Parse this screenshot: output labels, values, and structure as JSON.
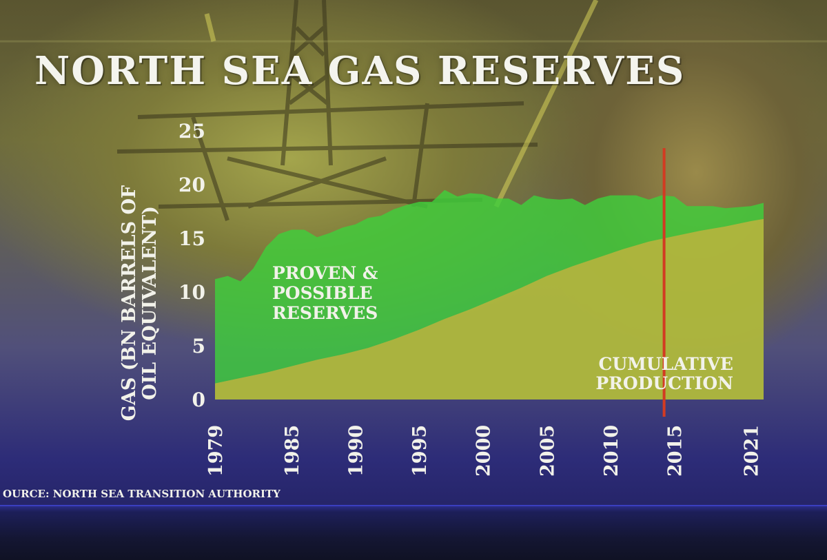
{
  "title": "NORTH SEA GAS RESERVES",
  "source": "OURCE: NORTH SEA TRANSITION AUTHORITY",
  "chart_data": {
    "type": "area",
    "title": "NORTH SEA GAS RESERVES",
    "ylabel": [
      "GAS (BN BARRELS OF",
      "OIL EQUIVALENT)"
    ],
    "xlabel": "",
    "ylim": [
      0,
      25
    ],
    "xlim": [
      1979,
      2022
    ],
    "y_ticks": [
      0,
      5,
      10,
      15,
      20,
      25
    ],
    "x_ticks": [
      "1979",
      "1985",
      "1990",
      "1995",
      "2000",
      "2005",
      "2010",
      "2015",
      "2021"
    ],
    "grid": false,
    "stacked": false,
    "series": [
      {
        "label": [
          "PROVEN &",
          "POSSIBLE",
          "RESERVES"
        ],
        "color": "#3fce3c",
        "x": [
          1979,
          1980,
          1981,
          1982,
          1983,
          1984,
          1985,
          1986,
          1987,
          1988,
          1989,
          1990,
          1991,
          1992,
          1993,
          1994,
          1995,
          1996,
          1997,
          1998,
          1999,
          2000,
          2001,
          2002,
          2003,
          2004,
          2005,
          2006,
          2007,
          2008,
          2009,
          2010,
          2011,
          2012,
          2013,
          2014,
          2015,
          2016,
          2017,
          2018,
          2019,
          2020,
          2021,
          2022
        ],
        "y": [
          11.2,
          11.5,
          11.0,
          12.2,
          14.2,
          15.4,
          15.8,
          15.8,
          15.1,
          15.5,
          16.0,
          16.3,
          16.9,
          17.1,
          17.7,
          18.1,
          18.4,
          18.4,
          19.5,
          18.9,
          19.2,
          19.1,
          18.7,
          18.7,
          18.1,
          19.0,
          18.7,
          18.6,
          18.7,
          18.1,
          18.7,
          19.0,
          19.0,
          19.0,
          18.6,
          19.0,
          18.9,
          18.0,
          18.0,
          18.0,
          17.8,
          17.9,
          18.0,
          18.3
        ]
      },
      {
        "label": [
          "CUMULATIVE",
          "PRODUCTION"
        ],
        "color": "#c8b23d",
        "x": [
          1979,
          1981,
          1983,
          1985,
          1987,
          1989,
          1991,
          1993,
          1995,
          1997,
          1999,
          2001,
          2003,
          2005,
          2007,
          2009,
          2011,
          2013,
          2015,
          2017,
          2019,
          2021,
          2022
        ],
        "y": [
          1.5,
          2.0,
          2.5,
          3.1,
          3.7,
          4.2,
          4.8,
          5.6,
          6.5,
          7.5,
          8.4,
          9.4,
          10.4,
          11.5,
          12.4,
          13.2,
          14.0,
          14.7,
          15.2,
          15.7,
          16.1,
          16.6,
          16.8
        ]
      }
    ],
    "reference_lines": [
      {
        "x": 2014.2,
        "color": "#d23b22"
      }
    ]
  }
}
